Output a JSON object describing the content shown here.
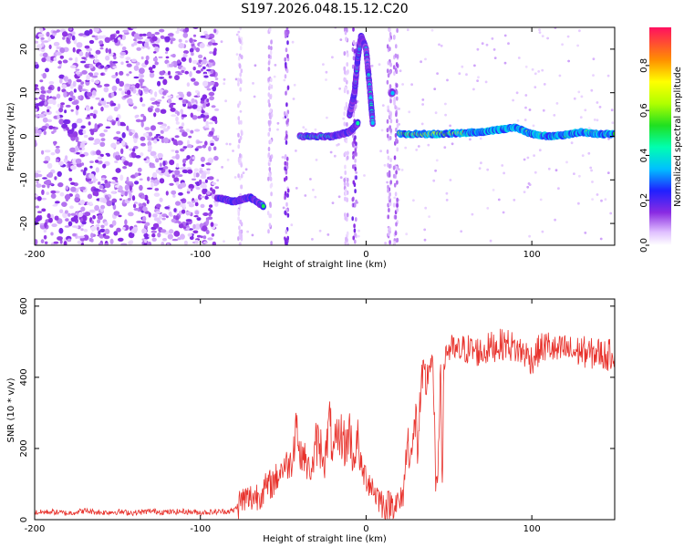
{
  "title": "S197.2026.048.15.12.C20",
  "chart_data": [
    {
      "type": "heatmap",
      "name": "spectrogram",
      "xlabel": "Height of straight line (km)",
      "ylabel": "Frequency (Hz)",
      "xlim": [
        -200,
        150
      ],
      "ylim": [
        -25,
        25
      ],
      "xticks": [
        -200,
        -100,
        0,
        100
      ],
      "xtick_labels": [
        "-200",
        "-100",
        "0",
        "100"
      ],
      "yticks": [
        -20,
        -10,
        0,
        10,
        20
      ],
      "ytick_labels": [
        "-20",
        "-10",
        "0",
        "10",
        "20"
      ],
      "colorbar": {
        "label": "Normalized spectral amplitude",
        "ticks": [
          0.0,
          0.2,
          0.4,
          0.6,
          0.8
        ],
        "tick_labels": [
          "0.0",
          "0.2",
          "0.4",
          "0.6",
          "0.8"
        ],
        "range": [
          0,
          0.97
        ]
      },
      "features": [
        {
          "label": "noise band",
          "x_range": [
            -200,
            -90
          ],
          "freq_range": [
            -25,
            25
          ],
          "amplitude": 0.1
        },
        {
          "label": "low branch",
          "x": [
            -90,
            -80,
            -70,
            -62
          ],
          "freq": [
            -14,
            -15,
            -14,
            -16
          ],
          "amplitude": 0.5
        },
        {
          "label": "near-zero track",
          "x": [
            -40,
            -20,
            -10,
            -5
          ],
          "freq": [
            0,
            0,
            1,
            3
          ],
          "amplitude": 0.5
        },
        {
          "label": "rising branch",
          "x": [
            -10,
            -7,
            -5,
            -3,
            0,
            2,
            4
          ],
          "freq": [
            5,
            10,
            18,
            23,
            20,
            12,
            3
          ],
          "amplitude": 0.45
        },
        {
          "label": "spike",
          "x": [
            15,
            16
          ],
          "freq": [
            10,
            10
          ],
          "amplitude": 0.4
        },
        {
          "label": "main track",
          "x": [
            20,
            40,
            60,
            70,
            80,
            90,
            100,
            110,
            120,
            130,
            140,
            150
          ],
          "freq": [
            0.5,
            0.5,
            0.8,
            1,
            1.5,
            2,
            0.5,
            0,
            0.3,
            1,
            0.5,
            0.5
          ],
          "amplitude": 0.85
        }
      ]
    },
    {
      "type": "line",
      "name": "snr",
      "xlabel": "Height of straight line (km)",
      "ylabel": "SNR (10 * v/v)",
      "xlim": [
        -200,
        150
      ],
      "ylim": [
        0,
        620
      ],
      "xticks": [
        -200,
        -100,
        0,
        100
      ],
      "xtick_labels": [
        "-200",
        "-100",
        "0",
        "100"
      ],
      "yticks": [
        0,
        200,
        400,
        600
      ],
      "ytick_labels": [
        "0",
        "200",
        "400",
        "600"
      ],
      "color": "#e8322c",
      "series": [
        {
          "name": "SNR",
          "x": [
            -200,
            -190,
            -180,
            -170,
            -160,
            -150,
            -140,
            -130,
            -120,
            -110,
            -100,
            -90,
            -80,
            -75,
            -70,
            -65,
            -60,
            -55,
            -50,
            -45,
            -42,
            -40,
            -38,
            -35,
            -32,
            -30,
            -27,
            -25,
            -22,
            -20,
            -18,
            -15,
            -12,
            -10,
            -8,
            -5,
            -3,
            0,
            3,
            5,
            8,
            10,
            13,
            15,
            18,
            20,
            22,
            25,
            27,
            28,
            30,
            31,
            33,
            35,
            36,
            38,
            40,
            42,
            43,
            45,
            46,
            47,
            48,
            50,
            55,
            60,
            65,
            70,
            75,
            80,
            85,
            90,
            95,
            100,
            105,
            110,
            115,
            120,
            125,
            130,
            135,
            140,
            145,
            150
          ],
          "y": [
            20,
            22,
            18,
            25,
            20,
            22,
            19,
            24,
            21,
            23,
            20,
            22,
            25,
            55,
            60,
            70,
            90,
            110,
            150,
            160,
            290,
            170,
            190,
            140,
            150,
            220,
            200,
            160,
            280,
            180,
            210,
            240,
            200,
            260,
            160,
            220,
            140,
            120,
            100,
            80,
            60,
            45,
            40,
            45,
            50,
            40,
            60,
            220,
            200,
            180,
            300,
            200,
            350,
            400,
            380,
            430,
            460,
            120,
            60,
            480,
            60,
            440,
            470,
            480,
            470,
            480,
            475,
            470,
            485,
            490,
            495,
            480,
            470,
            450,
            480,
            490,
            470,
            480,
            470,
            475,
            465,
            470,
            460,
            470
          ]
        }
      ]
    }
  ]
}
